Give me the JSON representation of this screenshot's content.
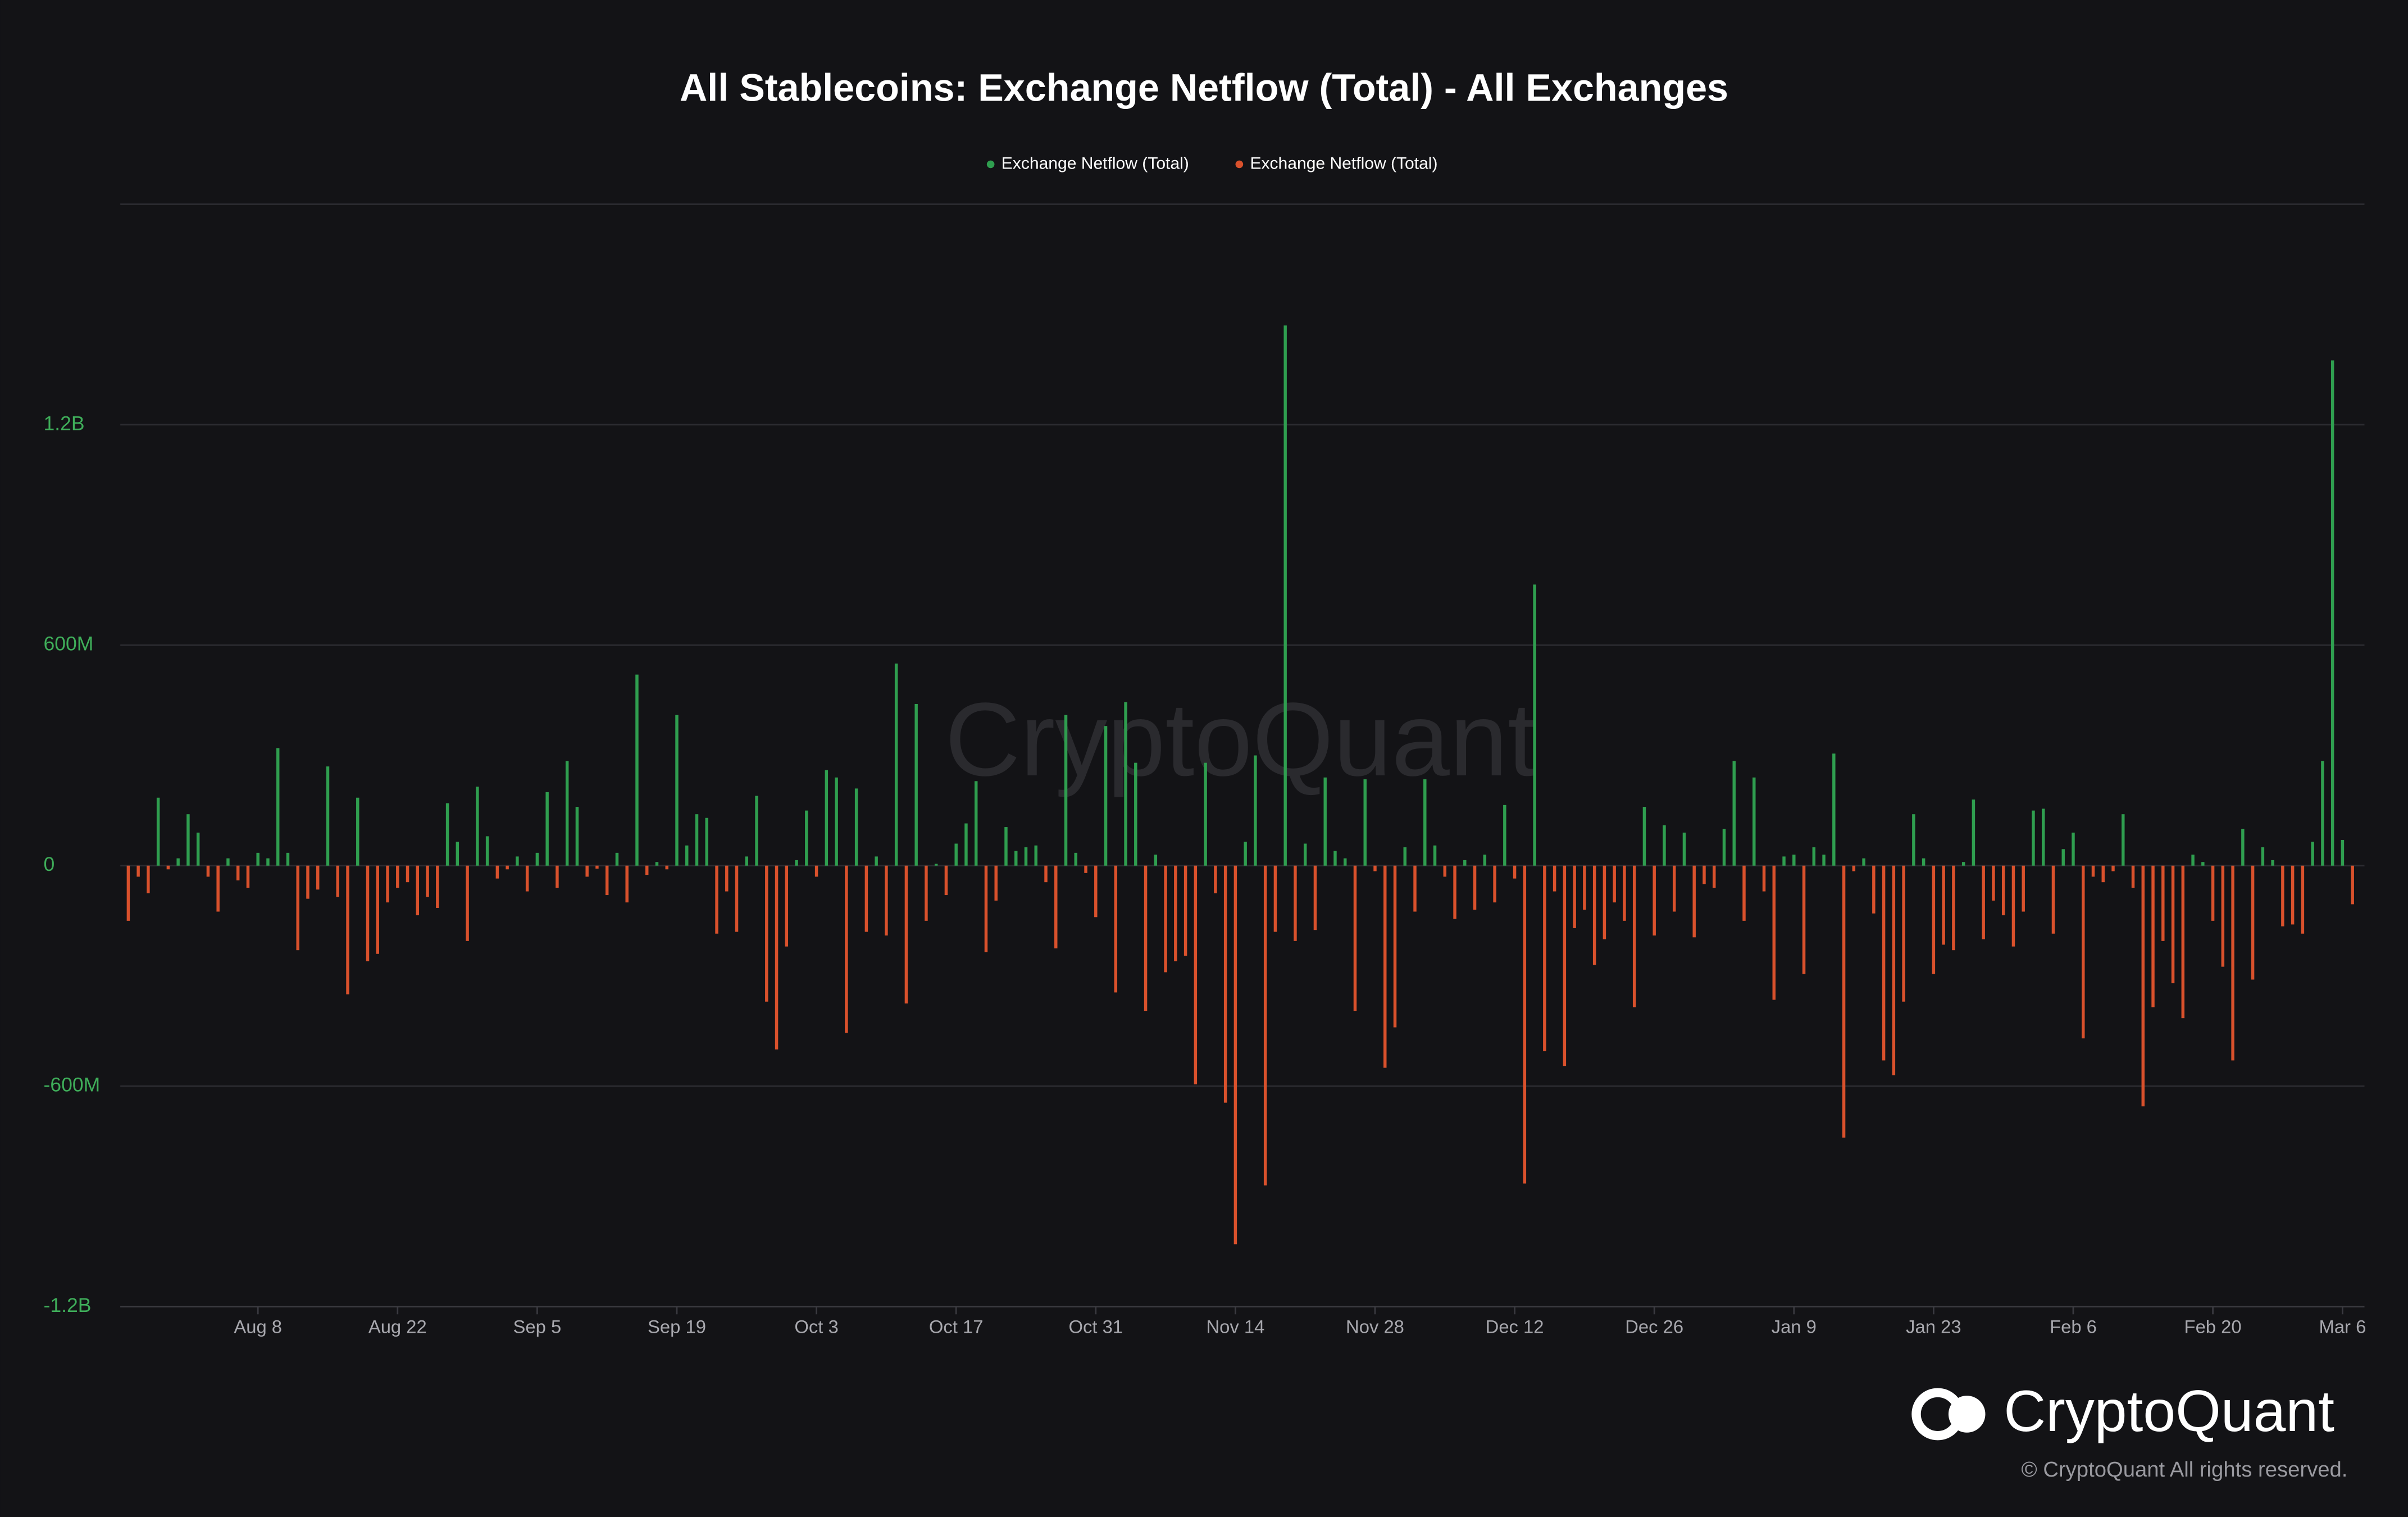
{
  "chart_data": {
    "type": "bar",
    "title": "All Stablecoins: Exchange Netflow (Total) - All Exchanges",
    "watermark": "CryptoQuant",
    "brand": "CryptoQuant",
    "copyright": "© CryptoQuant All rights reserved.",
    "xlim": [
      -0.8,
      224.2
    ],
    "xticks": [
      {
        "value": 13,
        "label": "Aug 8"
      },
      {
        "value": 27,
        "label": "Aug 22"
      },
      {
        "value": 41,
        "label": "Sep 5"
      },
      {
        "value": 55,
        "label": "Sep 19"
      },
      {
        "value": 69,
        "label": "Oct 3"
      },
      {
        "value": 83,
        "label": "Oct 17"
      },
      {
        "value": 97,
        "label": "Oct 31"
      },
      {
        "value": 111,
        "label": "Nov 14"
      },
      {
        "value": 125,
        "label": "Nov 28"
      },
      {
        "value": 139,
        "label": "Dec 12"
      },
      {
        "value": 153,
        "label": "Dec 26"
      },
      {
        "value": 167,
        "label": "Jan 9"
      },
      {
        "value": 181,
        "label": "Jan 23"
      },
      {
        "value": 195,
        "label": "Feb 6"
      },
      {
        "value": 209,
        "label": "Feb 20"
      },
      {
        "value": 222,
        "label": "Mar 6"
      }
    ],
    "ylim": [
      -1200000000,
      1800000000
    ],
    "yticks": [
      {
        "value": 1200000000,
        "label": "1.2B"
      },
      {
        "value": 600000000,
        "label": "600M"
      },
      0,
      {
        "value": -600000000,
        "label": "-600M"
      },
      {
        "value": -1200000000,
        "label": "-1.2B"
      }
    ],
    "grid": true,
    "legend": "top",
    "series": [
      {
        "name": "Exchange Netflow (Total)",
        "color": "#2f9e4f",
        "values": [
          null,
          null,
          null,
          185000000,
          null,
          20000000,
          140000000,
          90000000,
          null,
          null,
          20000000,
          null,
          null,
          35000000,
          20000000,
          320000000,
          35000000,
          null,
          null,
          null,
          270000000,
          null,
          null,
          185000000,
          null,
          null,
          null,
          null,
          null,
          null,
          null,
          null,
          170000000,
          65000000,
          null,
          215000000,
          80000000,
          null,
          null,
          25000000,
          null,
          35000000,
          200000000,
          null,
          285000000,
          160000000,
          null,
          null,
          null,
          35000000,
          null,
          520000000,
          null,
          10000000,
          null,
          410000000,
          55000000,
          140000000,
          130000000,
          null,
          null,
          null,
          25000000,
          190000000,
          null,
          null,
          null,
          15000000,
          150000000,
          null,
          260000000,
          240000000,
          null,
          210000000,
          null,
          25000000,
          null,
          550000000,
          null,
          440000000,
          null,
          5000000,
          null,
          60000000,
          115000000,
          230000000,
          null,
          null,
          105000000,
          40000000,
          50000000,
          55000000,
          null,
          null,
          410000000,
          35000000,
          null,
          null,
          380000000,
          null,
          445000000,
          280000000,
          null,
          30000000,
          null,
          null,
          null,
          null,
          280000000,
          null,
          null,
          null,
          65000000,
          300000000,
          null,
          null,
          1470000000,
          null,
          60000000,
          null,
          240000000,
          40000000,
          20000000,
          null,
          235000000,
          null,
          null,
          null,
          50000000,
          null,
          235000000,
          55000000,
          null,
          null,
          15000000,
          null,
          30000000,
          null,
          165000000,
          null,
          null,
          765000000,
          null,
          null,
          null,
          null,
          null,
          null,
          null,
          null,
          null,
          null,
          160000000,
          null,
          110000000,
          null,
          90000000,
          null,
          null,
          null,
          100000000,
          285000000,
          null,
          240000000,
          null,
          null,
          25000000,
          30000000,
          null,
          50000000,
          30000000,
          305000000,
          null,
          null,
          20000000,
          null,
          null,
          null,
          null,
          140000000,
          20000000,
          null,
          null,
          null,
          10000000,
          180000000,
          null,
          null,
          null,
          null,
          null,
          150000000,
          155000000,
          null,
          45000000,
          90000000,
          null,
          null,
          null,
          null,
          140000000,
          null,
          null,
          null,
          null,
          null,
          null,
          30000000,
          10000000,
          null,
          null,
          null,
          100000000,
          null,
          50000000,
          15000000,
          null,
          null,
          null,
          65000000,
          285000000,
          1375000000,
          70000000,
          null
        ]
      },
      {
        "name": "Exchange Netflow (Total)",
        "color": "#d9512c",
        "values": [
          -150000000,
          -30000000,
          -75000000,
          null,
          -10000000,
          null,
          null,
          null,
          -30000000,
          -125000000,
          null,
          -40000000,
          -60000000,
          null,
          null,
          null,
          null,
          -230000000,
          -90000000,
          -65000000,
          null,
          -85000000,
          -350000000,
          null,
          -260000000,
          -240000000,
          -100000000,
          -60000000,
          -45000000,
          -135000000,
          -85000000,
          -115000000,
          null,
          null,
          -205000000,
          null,
          null,
          -35000000,
          -10000000,
          null,
          -70000000,
          null,
          null,
          -60000000,
          null,
          null,
          -30000000,
          -8000000,
          -80000000,
          null,
          -100000000,
          null,
          -25000000,
          null,
          -10000000,
          null,
          null,
          null,
          null,
          -185000000,
          -70000000,
          -180000000,
          null,
          null,
          -370000000,
          -500000000,
          -220000000,
          null,
          null,
          -30000000,
          null,
          null,
          -455000000,
          null,
          -180000000,
          null,
          -190000000,
          null,
          -375000000,
          null,
          -150000000,
          null,
          -80000000,
          null,
          null,
          null,
          -235000000,
          -95000000,
          null,
          null,
          null,
          null,
          -45000000,
          -225000000,
          null,
          null,
          -20000000,
          -140000000,
          null,
          -345000000,
          null,
          null,
          -395000000,
          null,
          -290000000,
          -260000000,
          -245000000,
          -595000000,
          null,
          -75000000,
          -645000000,
          -1030000000,
          null,
          null,
          -870000000,
          -180000000,
          null,
          -205000000,
          null,
          -175000000,
          null,
          null,
          null,
          -395000000,
          null,
          -15000000,
          -550000000,
          -440000000,
          null,
          -125000000,
          null,
          null,
          -30000000,
          -145000000,
          null,
          -120000000,
          null,
          -100000000,
          null,
          -35000000,
          -865000000,
          null,
          -505000000,
          -70000000,
          -545000000,
          -170000000,
          -120000000,
          -270000000,
          -200000000,
          -100000000,
          -150000000,
          -385000000,
          null,
          -190000000,
          null,
          -125000000,
          null,
          -195000000,
          -50000000,
          -60000000,
          null,
          null,
          -150000000,
          null,
          -70000000,
          -365000000,
          null,
          null,
          -295000000,
          null,
          null,
          null,
          -740000000,
          -15000000,
          null,
          -130000000,
          -530000000,
          -570000000,
          -370000000,
          null,
          null,
          -295000000,
          -215000000,
          -230000000,
          null,
          null,
          -200000000,
          -95000000,
          -135000000,
          -220000000,
          -125000000,
          null,
          null,
          -185000000,
          null,
          null,
          -470000000,
          -30000000,
          -45000000,
          -15000000,
          null,
          -60000000,
          -655000000,
          -385000000,
          -205000000,
          -320000000,
          -415000000,
          null,
          null,
          -150000000,
          -275000000,
          -530000000,
          null,
          -310000000,
          null,
          null,
          -165000000,
          -160000000,
          -185000000,
          null,
          null,
          null,
          null,
          -105000000
        ]
      }
    ]
  }
}
